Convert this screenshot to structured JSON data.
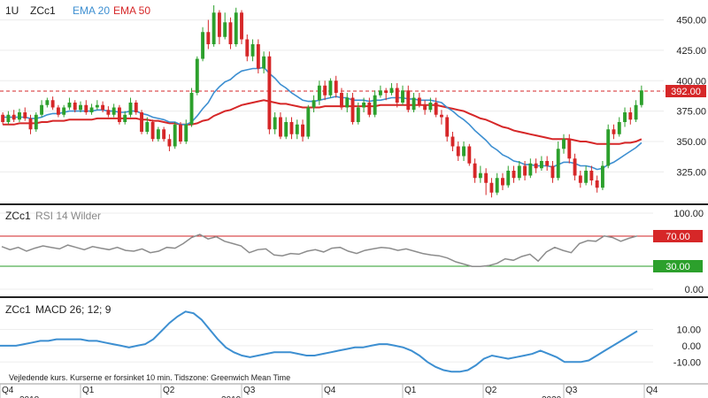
{
  "header": {
    "period": "1U",
    "symbol": "ZCc1",
    "ema20_label": "EMA 20",
    "ema50_label": "EMA 50"
  },
  "rsi_header": {
    "symbol": "ZCc1",
    "label": "RSI 14 Wilder"
  },
  "macd_header": {
    "symbol": "ZCc1",
    "label": "MACD 26; 12; 9"
  },
  "footer_note": "Vejledende kurs. Kurserne er forsinket 10 min.  Tidszone: Greenwich Mean Time",
  "colors": {
    "up": "#2ca02c",
    "down": "#d62728",
    "ema20": "#3d8fd1",
    "ema50": "#d62728",
    "rsi": "#8c8c8c",
    "macd": "#3d8fd1",
    "rsi_upper": "#d62728",
    "rsi_lower": "#2ca02c",
    "price_tag": "#d62728",
    "separator": "#222222"
  },
  "chart_data": [
    {
      "type": "candlestick",
      "title": "ZCc1",
      "price_label": "392.00",
      "last_price": 392,
      "y_ticks": [
        "450.00",
        "425.00",
        "400.00",
        "375.00",
        "350.00",
        "325.00"
      ],
      "y_tick_values": [
        450,
        425,
        400,
        375,
        350,
        325
      ],
      "ylim": [
        302,
        462
      ],
      "series": [
        {
          "name": "EMA 20"
        },
        {
          "name": "EMA 50"
        }
      ],
      "candles": [
        [
          372,
          366,
          374,
          364
        ],
        [
          366,
          372,
          375,
          364
        ],
        [
          372,
          368,
          376,
          366
        ],
        [
          368,
          374,
          377,
          366
        ],
        [
          374,
          369,
          378,
          367
        ],
        [
          369,
          360,
          372,
          356
        ],
        [
          360,
          372,
          374,
          358
        ],
        [
          372,
          380,
          384,
          370
        ],
        [
          380,
          384,
          386,
          378
        ],
        [
          384,
          378,
          387,
          376
        ],
        [
          378,
          372,
          380,
          370
        ],
        [
          372,
          378,
          380,
          370
        ],
        [
          378,
          382,
          386,
          376
        ],
        [
          382,
          376,
          384,
          374
        ],
        [
          376,
          380,
          383,
          374
        ],
        [
          380,
          374,
          384,
          372
        ],
        [
          374,
          378,
          381,
          372
        ],
        [
          378,
          380,
          384,
          376
        ],
        [
          380,
          376,
          383,
          374
        ],
        [
          376,
          372,
          379,
          370
        ],
        [
          372,
          378,
          381,
          370
        ],
        [
          378,
          366,
          380,
          364
        ],
        [
          366,
          372,
          375,
          364
        ],
        [
          372,
          382,
          386,
          370
        ],
        [
          382,
          374,
          384,
          372
        ],
        [
          374,
          358,
          376,
          356
        ],
        [
          358,
          366,
          370,
          356
        ],
        [
          366,
          352,
          368,
          350
        ],
        [
          352,
          360,
          362,
          350
        ],
        [
          360,
          352,
          362,
          350
        ],
        [
          352,
          346,
          356,
          342
        ],
        [
          346,
          364,
          366,
          344
        ],
        [
          364,
          350,
          366,
          348
        ],
        [
          350,
          364,
          368,
          348
        ],
        [
          364,
          390,
          394,
          362
        ],
        [
          390,
          418,
          420,
          388
        ],
        [
          418,
          440,
          444,
          416
        ],
        [
          440,
          430,
          450,
          426
        ],
        [
          430,
          456,
          462,
          428
        ],
        [
          456,
          436,
          458,
          430
        ],
        [
          436,
          448,
          456,
          434
        ],
        [
          448,
          430,
          452,
          426
        ],
        [
          430,
          456,
          460,
          428
        ],
        [
          456,
          434,
          458,
          430
        ],
        [
          434,
          420,
          438,
          416
        ],
        [
          420,
          430,
          434,
          416
        ],
        [
          430,
          410,
          434,
          406
        ],
        [
          410,
          420,
          424,
          406
        ],
        [
          420,
          360,
          424,
          356
        ],
        [
          360,
          370,
          374,
          356
        ],
        [
          370,
          354,
          374,
          352
        ],
        [
          354,
          366,
          370,
          352
        ],
        [
          366,
          356,
          370,
          352
        ],
        [
          356,
          364,
          368,
          352
        ],
        [
          364,
          354,
          368,
          350
        ],
        [
          354,
          378,
          380,
          352
        ],
        [
          378,
          384,
          388,
          374
        ],
        [
          384,
          396,
          400,
          380
        ],
        [
          396,
          388,
          400,
          384
        ],
        [
          388,
          400,
          402,
          386
        ],
        [
          400,
          390,
          404,
          386
        ],
        [
          390,
          378,
          394,
          376
        ],
        [
          378,
          386,
          390,
          374
        ],
        [
          386,
          366,
          390,
          364
        ],
        [
          366,
          378,
          382,
          364
        ],
        [
          378,
          382,
          386,
          374
        ],
        [
          382,
          372,
          386,
          370
        ],
        [
          372,
          388,
          392,
          370
        ],
        [
          388,
          392,
          396,
          386
        ],
        [
          392,
          390,
          394,
          384
        ],
        [
          390,
          394,
          398,
          388
        ],
        [
          394,
          382,
          398,
          378
        ],
        [
          382,
          392,
          396,
          380
        ],
        [
          392,
          376,
          396,
          374
        ],
        [
          376,
          386,
          390,
          374
        ],
        [
          386,
          380,
          390,
          378
        ],
        [
          380,
          376,
          384,
          372
        ],
        [
          376,
          382,
          386,
          374
        ],
        [
          382,
          372,
          386,
          370
        ],
        [
          372,
          370,
          376,
          364
        ],
        [
          370,
          354,
          372,
          350
        ],
        [
          354,
          346,
          358,
          342
        ],
        [
          346,
          338,
          350,
          334
        ],
        [
          338,
          346,
          350,
          334
        ],
        [
          346,
          332,
          348,
          330
        ],
        [
          332,
          320,
          336,
          316
        ],
        [
          320,
          324,
          330,
          316
        ],
        [
          324,
          316,
          328,
          306
        ],
        [
          316,
          308,
          320,
          304
        ],
        [
          308,
          320,
          324,
          306
        ],
        [
          320,
          314,
          324,
          310
        ],
        [
          314,
          326,
          330,
          312
        ],
        [
          326,
          320,
          330,
          316
        ],
        [
          320,
          330,
          334,
          318
        ],
        [
          330,
          322,
          334,
          318
        ],
        [
          322,
          332,
          336,
          320
        ],
        [
          332,
          328,
          336,
          324
        ],
        [
          328,
          334,
          338,
          326
        ],
        [
          334,
          330,
          338,
          326
        ],
        [
          330,
          320,
          334,
          316
        ],
        [
          320,
          344,
          350,
          318
        ],
        [
          344,
          352,
          356,
          340
        ],
        [
          352,
          336,
          356,
          332
        ],
        [
          336,
          322,
          340,
          318
        ],
        [
          322,
          316,
          326,
          312
        ],
        [
          316,
          326,
          330,
          314
        ],
        [
          326,
          318,
          330,
          314
        ],
        [
          318,
          312,
          322,
          308
        ],
        [
          312,
          330,
          334,
          310
        ],
        [
          330,
          360,
          364,
          328
        ],
        [
          360,
          356,
          364,
          352
        ],
        [
          356,
          366,
          370,
          354
        ],
        [
          366,
          374,
          378,
          362
        ],
        [
          374,
          368,
          378,
          364
        ],
        [
          368,
          380,
          384,
          366
        ],
        [
          380,
          392,
          396,
          378
        ]
      ],
      "ema20": [
        370,
        370,
        370,
        370,
        370,
        369,
        369,
        370,
        372,
        373,
        373,
        374,
        375,
        375,
        375,
        375,
        375,
        376,
        376,
        375,
        375,
        374,
        374,
        375,
        375,
        373,
        372,
        370,
        369,
        368,
        366,
        366,
        364,
        364,
        366,
        371,
        377,
        382,
        390,
        395,
        399,
        401,
        405,
        408,
        409,
        410,
        410,
        411,
        406,
        402,
        397,
        394,
        390,
        387,
        384,
        383,
        383,
        384,
        385,
        386,
        387,
        386,
        386,
        384,
        384,
        384,
        383,
        384,
        384,
        385,
        386,
        386,
        386,
        385,
        385,
        384,
        384,
        384,
        383,
        382,
        378,
        375,
        371,
        368,
        364,
        359,
        355,
        351,
        346,
        343,
        339,
        337,
        334,
        333,
        331,
        331,
        330,
        330,
        330,
        329,
        331,
        333,
        333,
        332,
        330,
        330,
        329,
        327,
        328,
        331,
        333,
        336,
        339,
        342,
        345,
        349
      ],
      "ema50": [
        364,
        364,
        364,
        365,
        365,
        365,
        365,
        366,
        366,
        367,
        367,
        367,
        368,
        368,
        368,
        368,
        368,
        369,
        369,
        369,
        369,
        369,
        369,
        369,
        369,
        368,
        368,
        367,
        367,
        366,
        365,
        365,
        364,
        364,
        364,
        365,
        367,
        368,
        371,
        373,
        375,
        376,
        378,
        380,
        381,
        382,
        383,
        384,
        383,
        382,
        381,
        381,
        380,
        379,
        378,
        378,
        378,
        378,
        379,
        379,
        379,
        379,
        379,
        379,
        379,
        379,
        379,
        379,
        380,
        380,
        380,
        380,
        380,
        380,
        380,
        380,
        380,
        380,
        380,
        379,
        378,
        377,
        376,
        375,
        373,
        371,
        369,
        368,
        366,
        364,
        362,
        361,
        359,
        358,
        357,
        356,
        355,
        354,
        353,
        352,
        352,
        352,
        352,
        351,
        350,
        350,
        349,
        348,
        348,
        348,
        348,
        348,
        349,
        349,
        350,
        352
      ]
    },
    {
      "type": "line",
      "title": "RSI 14 Wilder",
      "y_ticks": [
        "100.00",
        "70.00",
        "30.00",
        "0.00"
      ],
      "y_tick_values": [
        100,
        70,
        30,
        0
      ],
      "ylim": [
        0,
        100
      ],
      "upper_band": 70,
      "lower_band": 30,
      "upper_label": "70.00",
      "lower_label": "30.00",
      "values": [
        56,
        52,
        55,
        50,
        54,
        57,
        55,
        53,
        58,
        55,
        52,
        56,
        54,
        52,
        55,
        51,
        50,
        53,
        48,
        50,
        55,
        54,
        60,
        68,
        72,
        66,
        69,
        63,
        60,
        57,
        48,
        52,
        53,
        45,
        44,
        47,
        46,
        50,
        52,
        49,
        54,
        55,
        50,
        47,
        51,
        53,
        55,
        54,
        51,
        53,
        50,
        47,
        45,
        44,
        41,
        36,
        33,
        30,
        30,
        31,
        34,
        40,
        38,
        43,
        46,
        37,
        49,
        55,
        51,
        48,
        60,
        64,
        63,
        70,
        68,
        63,
        67,
        70
      ]
    },
    {
      "type": "line",
      "title": "MACD 26; 12; 9",
      "y_ticks": [
        "10.00",
        "0.00",
        "-10.00"
      ],
      "y_tick_values": [
        10,
        0,
        -10
      ],
      "ylim": [
        -18,
        25
      ],
      "values": [
        0,
        0,
        0,
        1,
        2,
        3,
        3,
        4,
        4,
        4,
        4,
        3,
        3,
        2,
        1,
        0,
        -1,
        0,
        1,
        4,
        9,
        14,
        18,
        21,
        20,
        16,
        10,
        4,
        -1,
        -4,
        -6,
        -7,
        -6,
        -5,
        -4,
        -4,
        -4,
        -5,
        -6,
        -6,
        -5,
        -4,
        -3,
        -2,
        -1,
        -1,
        0,
        1,
        1,
        0,
        -1,
        -3,
        -6,
        -10,
        -13,
        -15,
        -16,
        -16,
        -15,
        -12,
        -8,
        -6,
        -7,
        -8,
        -7,
        -6,
        -5,
        -3,
        -5,
        -7,
        -10,
        -10,
        -10,
        -9,
        -6,
        -3,
        0,
        3,
        6,
        9
      ]
    },
    {
      "type": "axis",
      "x_ticks": [
        "Q4",
        "Q1",
        "Q2",
        "Q3",
        "Q4",
        "Q1",
        "Q2",
        "Q3",
        "Q4"
      ],
      "years": [
        "2018",
        "2019",
        "2020"
      ]
    }
  ]
}
